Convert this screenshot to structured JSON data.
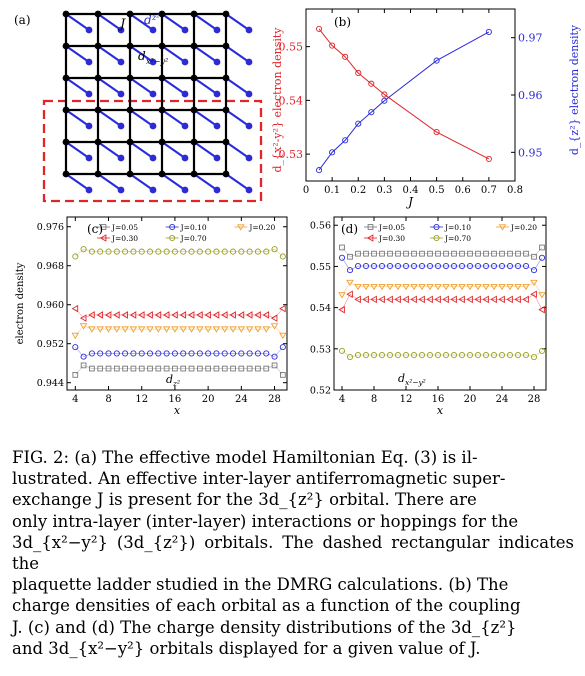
{
  "panel_a": {
    "label": "(a)",
    "J_label": "J",
    "orbital_top": "d",
    "orbital_top_sub": "z²",
    "orbital_bottom": "d",
    "orbital_bottom_sub": "x²−y²",
    "colors": {
      "bottom_layer": "#000000",
      "top_layer": "#2b2bd9",
      "dashed_box": "#e0262a"
    }
  },
  "chart_data": [
    {
      "panel": "(b)",
      "type": "line",
      "xlabel": "J",
      "ylabel_left": "d_{x²-y²} electron density",
      "ylabel_right": "d_{z²} electron density",
      "xlim": [
        0,
        0.8
      ],
      "ylim_left": [
        0.525,
        0.557
      ],
      "ylim_right": [
        0.945,
        0.975
      ],
      "xticks": [
        "0",
        "0.1",
        "0.2",
        "0.3",
        "0.4",
        "0.5",
        "0.6",
        "0.7",
        "0.8"
      ],
      "yticks_left": [
        "0.53",
        "0.54",
        "0.55"
      ],
      "yticks_right": [
        "0.95",
        "0.96",
        "0.97"
      ],
      "series": [
        {
          "axis": "left",
          "color": "#e0262a",
          "marker": "circle",
          "x": [
            0.05,
            0.1,
            0.15,
            0.2,
            0.25,
            0.3,
            0.5,
            0.7
          ],
          "values": [
            0.5533,
            0.5502,
            0.5481,
            0.5451,
            0.5431,
            0.5411,
            0.5341,
            0.5291
          ]
        },
        {
          "axis": "right",
          "color": "#2b2bd9",
          "marker": "circle",
          "x": [
            0.05,
            0.1,
            0.15,
            0.2,
            0.25,
            0.3,
            0.5,
            0.7
          ],
          "values": [
            0.9469,
            0.95,
            0.9521,
            0.955,
            0.957,
            0.959,
            0.966,
            0.971
          ]
        }
      ]
    },
    {
      "panel": "(c)",
      "type": "line",
      "xlabel": "x",
      "ylabel": "electron density",
      "annotation": "d",
      "annotation_sub": "z²",
      "xlim": [
        3,
        29.5
      ],
      "ylim": [
        0.9425,
        0.978
      ],
      "xticks": [
        "4",
        "8",
        "12",
        "16",
        "20",
        "24",
        "28"
      ],
      "yticks": [
        "0.944",
        "0.952",
        "0.960",
        "0.968",
        "0.976"
      ],
      "legend": [
        "J=0.05",
        "J=0.10",
        "J=0.20",
        "J=0.30",
        "J=0.70"
      ],
      "series": [
        {
          "name": "J=0.05",
          "color": "#777777",
          "marker": "square",
          "base": 0.9469,
          "edge": -0.0013
        },
        {
          "name": "J=0.10",
          "color": "#2b2bd9",
          "marker": "circle",
          "base": 0.95,
          "edge": 0.0013
        },
        {
          "name": "J=0.20",
          "color": "#f0a030",
          "marker": "triangle-down",
          "base": 0.955,
          "edge": -0.0013
        },
        {
          "name": "J=0.30",
          "color": "#e0262a",
          "marker": "triangle-left",
          "base": 0.9579,
          "edge": 0.0013
        },
        {
          "name": "J=0.70",
          "color": "#9aa020",
          "marker": "circle",
          "base": 0.9709,
          "edge": -0.001
        }
      ]
    },
    {
      "panel": "(d)",
      "type": "line",
      "xlabel": "x",
      "annotation": "d",
      "annotation_sub": "x²−y²",
      "xlim": [
        3,
        29.5
      ],
      "ylim": [
        0.52,
        0.562
      ],
      "xticks": [
        "4",
        "8",
        "12",
        "16",
        "20",
        "24",
        "28"
      ],
      "yticks": [
        "0.52",
        "0.53",
        "0.54",
        "0.55",
        "0.56"
      ],
      "legend": [
        "J=0.05",
        "J=0.10",
        "J=0.20",
        "J=0.30",
        "J=0.70"
      ],
      "series": [
        {
          "name": "J=0.05",
          "color": "#777777",
          "marker": "square",
          "base": 0.5531,
          "edge": 0.0015
        },
        {
          "name": "J=0.10",
          "color": "#2b2bd9",
          "marker": "circle",
          "base": 0.5501,
          "edge": 0.002
        },
        {
          "name": "J=0.20",
          "color": "#f0a030",
          "marker": "triangle-down",
          "base": 0.5451,
          "edge": -0.002
        },
        {
          "name": "J=0.30",
          "color": "#e0262a",
          "marker": "triangle-left",
          "base": 0.542,
          "edge": -0.0025
        },
        {
          "name": "J=0.70",
          "color": "#9aa020",
          "marker": "circle",
          "base": 0.5285,
          "edge": 0.001
        }
      ]
    }
  ],
  "caption": [
    "FIG. 2: (a) The effective model Hamiltonian Eq. (3) is il-",
    "lustrated. An effective inter-layer antiferromagnetic super-",
    "exchange J is present for the 3d_{z²} orbital. There are",
    "only intra-layer (inter-layer) interactions or hoppings for the",
    "3d_{x²−y²} (3d_{z²}) orbitals. The dashed rectangular indicates the",
    "plaquette ladder studied in the DMRG calculations. (b) The",
    "charge densities of each orbital as a function of the coupling",
    "J. (c) and (d) The charge density distributions of the 3d_{z²}",
    "and 3d_{x²−y²} orbitals displayed for a given value of J."
  ]
}
